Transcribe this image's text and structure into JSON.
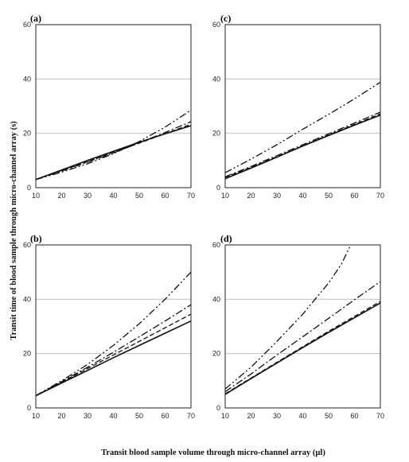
{
  "figure": {
    "xlabel": "Transit blood sample volume through micro-channel array (µl)",
    "ylabel": "Transit time of blood sample through micro-channel array (s)"
  },
  "chart_data": [
    {
      "type": "line",
      "panel_label": "(a)",
      "x": [
        10,
        20,
        30,
        40,
        50,
        60,
        70
      ],
      "xticks": [
        10,
        20,
        30,
        40,
        50,
        60,
        70
      ],
      "yticks": [
        0,
        20,
        40,
        60
      ],
      "xlim": [
        10,
        70
      ],
      "ylim": [
        0,
        60
      ],
      "grid": "horizontal",
      "series": [
        {
          "style": "solid",
          "values": [
            3.0,
            6.5,
            10.0,
            13.4,
            16.7,
            19.8,
            22.8
          ]
        },
        {
          "style": "dashed",
          "values": [
            3.0,
            6.3,
            9.6,
            13.0,
            16.4,
            19.9,
            23.3
          ]
        },
        {
          "style": "dashdot",
          "values": [
            3.0,
            6.1,
            9.4,
            12.8,
            16.5,
            20.3,
            24.3
          ]
        },
        {
          "style": "dashdotdot",
          "values": [
            3.0,
            5.7,
            8.8,
            12.5,
            17.0,
            22.3,
            28.5
          ]
        }
      ]
    },
    {
      "type": "line",
      "panel_label": "(c)",
      "x": [
        10,
        20,
        30,
        40,
        50,
        60,
        70
      ],
      "xticks": [
        10,
        20,
        30,
        40,
        50,
        60,
        70
      ],
      "yticks": [
        0,
        20,
        40,
        60
      ],
      "xlim": [
        10,
        70
      ],
      "ylim": [
        0,
        60
      ],
      "grid": "horizontal",
      "series": [
        {
          "style": "solid",
          "values": [
            3.3,
            7.2,
            11.2,
            15.3,
            19.2,
            23.0,
            26.7
          ]
        },
        {
          "style": "dashed",
          "values": [
            3.8,
            7.5,
            11.4,
            15.4,
            19.4,
            23.3,
            27.2
          ]
        },
        {
          "style": "dashdot",
          "values": [
            4.0,
            7.8,
            11.8,
            15.8,
            19.8,
            23.8,
            27.8
          ]
        },
        {
          "style": "dashdotdot",
          "values": [
            5.5,
            10.5,
            15.8,
            21.5,
            27.0,
            32.7,
            38.8
          ]
        }
      ]
    },
    {
      "type": "line",
      "panel_label": "(b)",
      "x": [
        10,
        20,
        30,
        40,
        50,
        60,
        70
      ],
      "xticks": [
        10,
        20,
        30,
        40,
        50,
        60,
        70
      ],
      "yticks": [
        0,
        20,
        40,
        60
      ],
      "xlim": [
        10,
        70
      ],
      "ylim": [
        0,
        60
      ],
      "grid": "horizontal",
      "series": [
        {
          "style": "solid",
          "values": [
            4.5,
            9.2,
            13.8,
            18.5,
            23.0,
            27.5,
            32.0
          ]
        },
        {
          "style": "dashed",
          "values": [
            4.5,
            9.5,
            14.5,
            19.5,
            24.5,
            29.5,
            34.5
          ]
        },
        {
          "style": "dashdot",
          "values": [
            4.5,
            9.7,
            15.0,
            20.5,
            26.2,
            32.0,
            38.0
          ]
        },
        {
          "style": "dashdotdot",
          "values": [
            4.5,
            10.0,
            16.0,
            23.0,
            31.0,
            40.0,
            50.0
          ]
        }
      ]
    },
    {
      "type": "line",
      "panel_label": "(d)",
      "x": [
        10,
        20,
        30,
        40,
        50,
        60,
        70
      ],
      "xticks": [
        10,
        20,
        30,
        40,
        50,
        60,
        70
      ],
      "yticks": [
        0,
        20,
        40,
        60
      ],
      "xlim": [
        10,
        70
      ],
      "ylim": [
        0,
        60
      ],
      "grid": "horizontal",
      "series": [
        {
          "style": "solid",
          "values": [
            5.0,
            10.8,
            16.5,
            22.2,
            27.8,
            33.2,
            38.6
          ]
        },
        {
          "style": "dashed",
          "values": [
            5.2,
            11.0,
            16.8,
            22.5,
            28.2,
            33.7,
            39.2
          ]
        },
        {
          "style": "dashdot",
          "values": [
            6.0,
            12.5,
            19.5,
            26.2,
            33.0,
            39.8,
            46.5
          ]
        },
        {
          "style": "dashdotdot",
          "x": [
            10,
            20,
            30,
            40,
            50,
            55,
            58.5
          ],
          "values": [
            7.0,
            15.0,
            24.5,
            34.5,
            46.0,
            53.0,
            60.0
          ]
        }
      ]
    }
  ]
}
